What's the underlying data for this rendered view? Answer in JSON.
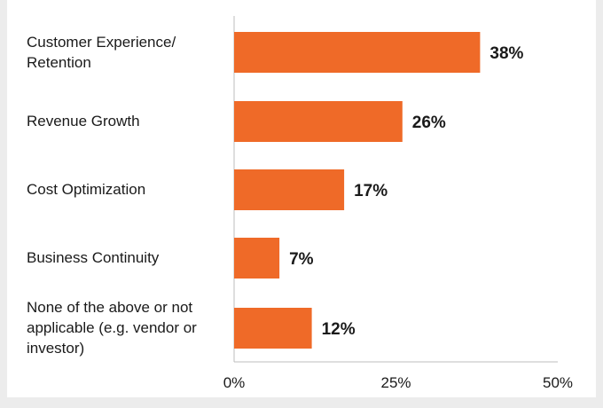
{
  "chart_data": {
    "type": "bar",
    "orientation": "horizontal",
    "categories": [
      "Customer Experience/\nRetention",
      "Revenue Growth",
      "Cost Optimization",
      "Business Continuity",
      "None of the above or not\napplicable (e.g. vendor or\ninvestor)"
    ],
    "values": [
      38,
      26,
      17,
      7,
      12
    ],
    "value_labels": [
      "38%",
      "26%",
      "17%",
      "7%",
      "12%"
    ],
    "title": "",
    "xlabel": "",
    "ylabel": "",
    "xlim": [
      0,
      50
    ],
    "xticks": [
      0,
      25,
      50
    ],
    "xtick_labels": [
      "0%",
      "25%",
      "50%"
    ],
    "grid": false,
    "legend": "none",
    "colors": {
      "bar": "#ef6a28",
      "axis": "#bdbdbd",
      "text": "#1a1a1a",
      "background": "#ffffff",
      "page": "#ececec"
    }
  }
}
